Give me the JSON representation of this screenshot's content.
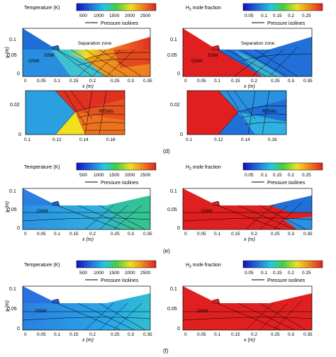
{
  "labels": {
    "temperature": "Temperature (K)",
    "h2_prefix": "H",
    "h2_sub": "2",
    "h2_suffix": " mole fraction",
    "pressure_isolines": "Pressure isolines",
    "x_axis": "x (m)",
    "y_axis": "y (m)",
    "osw": "OSW",
    "ssw": "SSW",
    "separation_zone": "Separation zone",
    "rfsws": "RfSWs",
    "panel_d": "(d)",
    "panel_e": "(e)",
    "panel_f": "(f)"
  },
  "temperature_ticks": [
    "500",
    "1000",
    "1500",
    "2000",
    "2500"
  ],
  "h2_ticks": [
    "0.05",
    "0.1",
    "0.15",
    "0.2",
    "0.25"
  ],
  "main_x_ticks": [
    "0",
    "0.05",
    "0.1",
    "0.15",
    "0.2",
    "0.25",
    "0.3",
    "0.35"
  ],
  "main_y_ticks": [
    "0",
    "0.05",
    "0.1"
  ],
  "zoom_x_ticks": [
    "0.1",
    "0.12",
    "0.14",
    "0.16"
  ],
  "zoom_y_ticks": [
    "0",
    "0.02"
  ],
  "colors": {
    "blue": "#1f5fd6",
    "cyan": "#22c8e8",
    "green": "#40d040",
    "yellow": "#f0e020",
    "orange": "#f08020",
    "red": "#e02020"
  }
}
